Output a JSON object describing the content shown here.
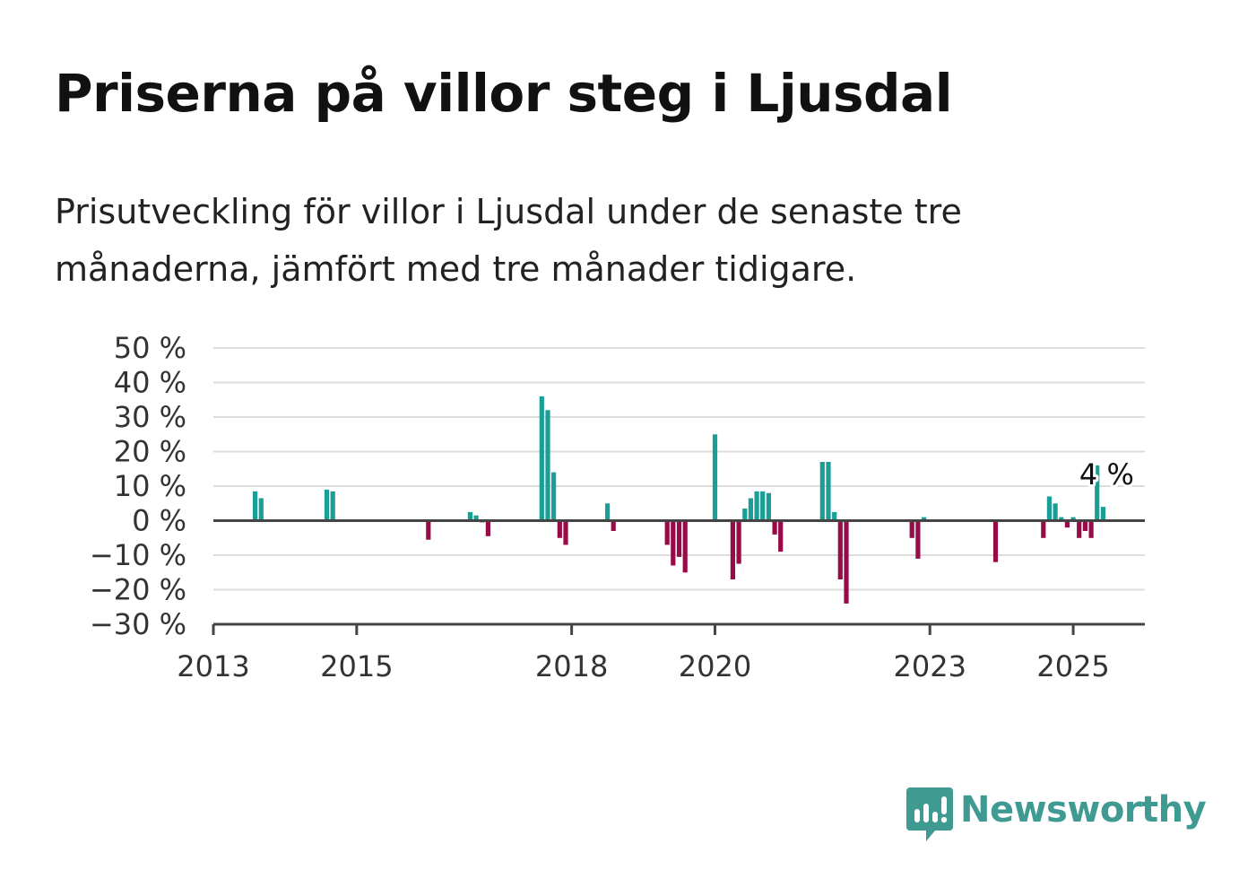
{
  "title": "Priserna på villor steg i Ljusdal",
  "subtitle": "Prisutveckling för villor i Ljusdal under de senaste tre månaderna, jämfört med tre månader tidigare.",
  "brand": {
    "name": "Newsworthy",
    "color": "#3f9a92"
  },
  "colors": {
    "positive": "#1a9e95",
    "negative": "#960b48",
    "grid": "#dddddd",
    "axis": "#444444"
  },
  "chart_data": {
    "type": "bar",
    "title": "Priserna på villor steg i Ljusdal",
    "xlabel": "",
    "ylabel": "",
    "ylim": [
      -30,
      50
    ],
    "xlim": [
      "2013-01",
      "2026-01"
    ],
    "grid": true,
    "yticks": [
      50,
      40,
      30,
      20,
      10,
      0,
      -10,
      -20,
      -30
    ],
    "ytick_labels": [
      "50 %",
      "40 %",
      "30 %",
      "20 %",
      "10 %",
      "0 %",
      "−10 %",
      "−20 %",
      "−30 %"
    ],
    "xticks": [
      "2013",
      "2015",
      "2018",
      "2020",
      "2023",
      "2025"
    ],
    "last_value_label": "4 %",
    "series": [
      {
        "unit": "%",
        "points": [
          {
            "x": "2013-08",
            "y": 8.5
          },
          {
            "x": "2013-09",
            "y": 6.5
          },
          {
            "x": "2014-08",
            "y": 9
          },
          {
            "x": "2014-09",
            "y": 8.5
          },
          {
            "x": "2016-01",
            "y": -5.5
          },
          {
            "x": "2016-08",
            "y": 2.5
          },
          {
            "x": "2016-09",
            "y": 1.5
          },
          {
            "x": "2016-10",
            "y": -0.5
          },
          {
            "x": "2016-11",
            "y": -4.5
          },
          {
            "x": "2017-08",
            "y": 36
          },
          {
            "x": "2017-09",
            "y": 32
          },
          {
            "x": "2017-10",
            "y": 14
          },
          {
            "x": "2017-11",
            "y": -5
          },
          {
            "x": "2017-12",
            "y": -7
          },
          {
            "x": "2018-07",
            "y": 5
          },
          {
            "x": "2018-08",
            "y": -3
          },
          {
            "x": "2019-05",
            "y": -7
          },
          {
            "x": "2019-06",
            "y": -13
          },
          {
            "x": "2019-07",
            "y": -10.5
          },
          {
            "x": "2019-08",
            "y": -15
          },
          {
            "x": "2020-01",
            "y": 25
          },
          {
            "x": "2020-04",
            "y": -17
          },
          {
            "x": "2020-05",
            "y": -12.5
          },
          {
            "x": "2020-06",
            "y": 3.5
          },
          {
            "x": "2020-07",
            "y": 6.5
          },
          {
            "x": "2020-08",
            "y": 8.5
          },
          {
            "x": "2020-09",
            "y": 8.5
          },
          {
            "x": "2020-10",
            "y": 8
          },
          {
            "x": "2020-11",
            "y": -4
          },
          {
            "x": "2020-12",
            "y": -9
          },
          {
            "x": "2021-07",
            "y": 17
          },
          {
            "x": "2021-08",
            "y": 17
          },
          {
            "x": "2021-09",
            "y": 2.5
          },
          {
            "x": "2021-10",
            "y": -17
          },
          {
            "x": "2021-11",
            "y": -24
          },
          {
            "x": "2022-10",
            "y": -5
          },
          {
            "x": "2022-11",
            "y": -11
          },
          {
            "x": "2022-12",
            "y": 1
          },
          {
            "x": "2023-12",
            "y": -12
          },
          {
            "x": "2024-08",
            "y": -5
          },
          {
            "x": "2024-09",
            "y": 7
          },
          {
            "x": "2024-10",
            "y": 5
          },
          {
            "x": "2024-11",
            "y": 1
          },
          {
            "x": "2024-12",
            "y": -2
          },
          {
            "x": "2025-01",
            "y": 1
          },
          {
            "x": "2025-02",
            "y": -5
          },
          {
            "x": "2025-03",
            "y": -3
          },
          {
            "x": "2025-04",
            "y": -5
          },
          {
            "x": "2025-05",
            "y": 16
          },
          {
            "x": "2025-06",
            "y": 4
          }
        ]
      }
    ]
  }
}
